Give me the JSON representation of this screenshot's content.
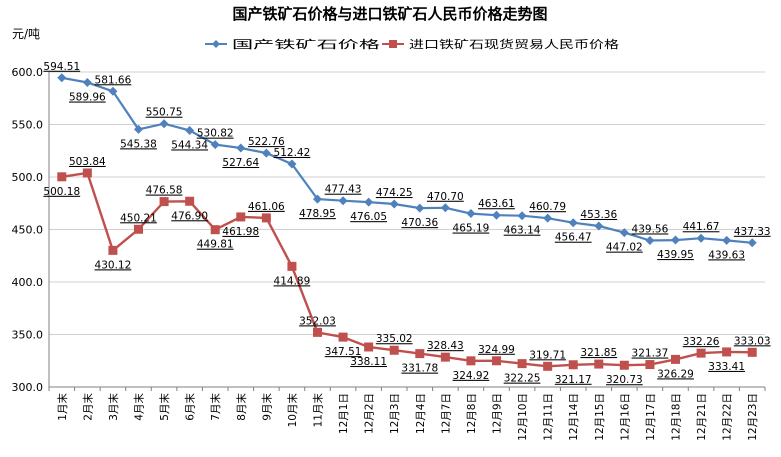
{
  "chart_data": {
    "type": "line",
    "title": "国产铁矿石价格与进口铁矿石人民币价格走势图",
    "ylabel": "元/吨",
    "ylim": [
      300,
      600
    ],
    "yticks": [
      "300.0",
      "350.0",
      "400.0",
      "450.0",
      "500.0",
      "550.0",
      "600.0"
    ],
    "legend_position": "top",
    "categories": [
      "1月末",
      "2月末",
      "3月末",
      "4月末",
      "5月末",
      "6月末",
      "7月末",
      "8月末",
      "9月末",
      "10月末",
      "11月末",
      "12月1日",
      "12月2日",
      "12月3日",
      "12月4日",
      "12月7日",
      "12月8日",
      "12月9日",
      "12月10日",
      "12月11日",
      "12月14日",
      "12月15日",
      "12月16日",
      "12月17日",
      "12月18日",
      "12月21日",
      "12月22日",
      "12月23日"
    ],
    "series": [
      {
        "name": "国产铁矿石价格",
        "color": "#4F81BD",
        "marker": "diamond",
        "values": [
          594.51,
          589.96,
          581.66,
          545.38,
          550.75,
          544.34,
          530.82,
          527.64,
          522.76,
          512.42,
          478.95,
          477.43,
          476.05,
          474.25,
          470.36,
          470.7,
          465.19,
          463.61,
          463.14,
          460.79,
          456.47,
          453.36,
          447.02,
          439.56,
          439.95,
          441.67,
          439.63,
          437.33
        ],
        "labels": [
          "594.51",
          "589.96",
          "581.66",
          "545.38",
          "550.75",
          "544.34",
          "530.82",
          "527.64",
          "522.76",
          "512.42",
          "478.95",
          "477.43",
          "476.05",
          "474.25",
          "470.36",
          "470.70",
          "465.19",
          "463.61",
          "463.14",
          "460.79",
          "456.47",
          "453.36",
          "447.02",
          "439.56",
          "439.95",
          "441.67",
          "439.63",
          "437.33"
        ]
      },
      {
        "name": "进口铁矿石现货贸易人民币价格",
        "color": "#C0504D",
        "marker": "square",
        "values": [
          500.18,
          503.84,
          430.12,
          450.21,
          476.58,
          476.9,
          449.81,
          461.98,
          461.06,
          414.89,
          352.03,
          347.51,
          338.11,
          335.02,
          331.78,
          328.43,
          324.92,
          324.99,
          322.25,
          319.71,
          321.17,
          321.85,
          320.73,
          321.37,
          326.29,
          332.26,
          333.41,
          333.03
        ],
        "labels": [
          "500.18",
          "503.84",
          "430.12",
          "450.21",
          "476.58",
          "476.90",
          "449.81",
          "461.98",
          "461.06",
          "414.89",
          "352.03",
          "347.51",
          "338.11",
          "335.02",
          "331.78",
          "328.43",
          "324.92",
          "324.99",
          "322.25",
          "319.71",
          "321.17",
          "321.85",
          "320.73",
          "321.37",
          "326.29",
          "332.26",
          "333.41",
          "333.03"
        ]
      }
    ]
  }
}
